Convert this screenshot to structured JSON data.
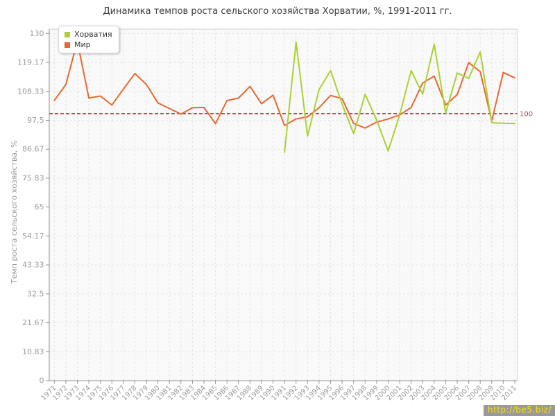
{
  "title": "Динамика темпов роста сельского хозяйства Хорватии, %, 1991-2011 гг.",
  "legend": {
    "items": [
      {
        "label": "Хорватия",
        "color": "#abd034"
      },
      {
        "label": "Мир",
        "color": "#e8672f"
      }
    ]
  },
  "watermark": {
    "text": "http://be5.biz/",
    "bg": "#999999",
    "color": "#ffe400"
  },
  "chart_data": {
    "type": "line",
    "title": "Динамика темпов роста сельского хозяйства Хорватии, %, 1991-2011 гг.",
    "xlabel": "",
    "ylabel": "Темп роста сельского хозяйства, %",
    "ylim": [
      0,
      130
    ],
    "grid": true,
    "legend_position": "top-left",
    "y_tick_labels": [
      "0",
      "10.83",
      "21.67",
      "32.5",
      "43.33",
      "54.17",
      "65",
      "75.83",
      "86.67",
      "97.5",
      "108.33",
      "119.17",
      "130"
    ],
    "x_tick_labels": [
      "1971",
      "1972",
      "1973",
      "1974",
      "1975",
      "1976",
      "1977",
      "1978",
      "1979",
      "1980",
      "1981",
      "1982",
      "1983",
      "1984",
      "1985",
      "1986",
      "1987",
      "1988",
      "1989",
      "1990",
      "1991",
      "1992",
      "1993",
      "1994",
      "1995",
      "1996",
      "1997",
      "1998",
      "1999",
      "2000",
      "2001",
      "2002",
      "2003",
      "2004",
      "2005",
      "2006",
      "2007",
      "2008",
      "2009",
      "2010",
      "2011"
    ],
    "guide_line": {
      "value": 100,
      "label": "100",
      "color": "#a74b58"
    },
    "series": [
      {
        "id": "world",
        "name": "Мир",
        "color": "#e8672f",
        "start_year": 1971,
        "values": [
          104.9,
          110.9,
          127.0,
          105.8,
          106.6,
          103.2,
          109.2,
          115.0,
          110.9,
          104.0,
          101.9,
          99.8,
          102.2,
          102.3,
          96.2,
          104.9,
          105.8,
          110.2,
          103.7,
          106.9,
          95.5,
          98.0,
          98.8,
          102.2,
          106.8,
          105.6,
          96.3,
          94.6,
          96.8,
          98.0,
          99.5,
          102.3,
          111.5,
          114.0,
          103.2,
          107.1,
          119.1,
          115.7,
          97.2,
          115.4,
          113.4
        ]
      },
      {
        "id": "croatia",
        "name": "Хорватия",
        "color": "#abd034",
        "start_year": 1991,
        "values": [
          85.5,
          126.8,
          91.6,
          109.0,
          116.1,
          103.6,
          92.5,
          107.2,
          97.6,
          86.0,
          99.5,
          116.1,
          107.3,
          126.0,
          100.2,
          115.2,
          113.2,
          123.1,
          96.6,
          96.4,
          96.3
        ]
      }
    ],
    "style": {
      "plot_bg": "#f9f9f9",
      "frame": "#cfcfcf",
      "grid_color": "#e0e0e0",
      "axis_color": "#8f8f8f",
      "tick_text": "#9b9b9b"
    }
  }
}
